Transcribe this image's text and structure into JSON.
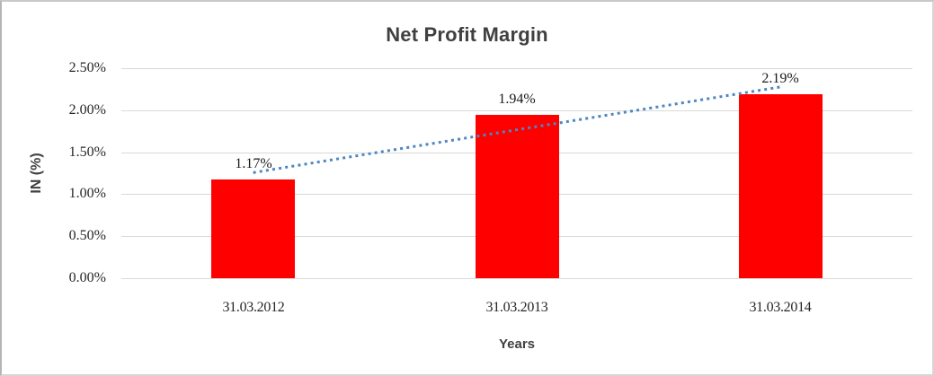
{
  "chart_data": {
    "type": "bar",
    "title": "Net Profit Margin",
    "xlabel": "Years",
    "ylabel": "IN (%)",
    "categories": [
      "31.03.2012",
      "31.03.2013",
      "31.03.2014"
    ],
    "values": [
      1.17,
      1.94,
      2.19
    ],
    "data_labels": [
      "1.17%",
      "1.94%",
      "2.19%"
    ],
    "y_ticks": [
      "0.00%",
      "0.50%",
      "1.00%",
      "1.50%",
      "2.00%",
      "2.50%"
    ],
    "ylim": [
      0,
      2.5
    ],
    "grid": true,
    "legend": "none",
    "colors": {
      "bar": "#ff0000",
      "gridline": "#d9d9d9",
      "trendline": "#4e86c4",
      "title_text": "#404040",
      "tick_text": "#262626"
    },
    "trendline": {
      "style": "dotted",
      "start_value": 1.257,
      "end_value": 2.277
    }
  }
}
